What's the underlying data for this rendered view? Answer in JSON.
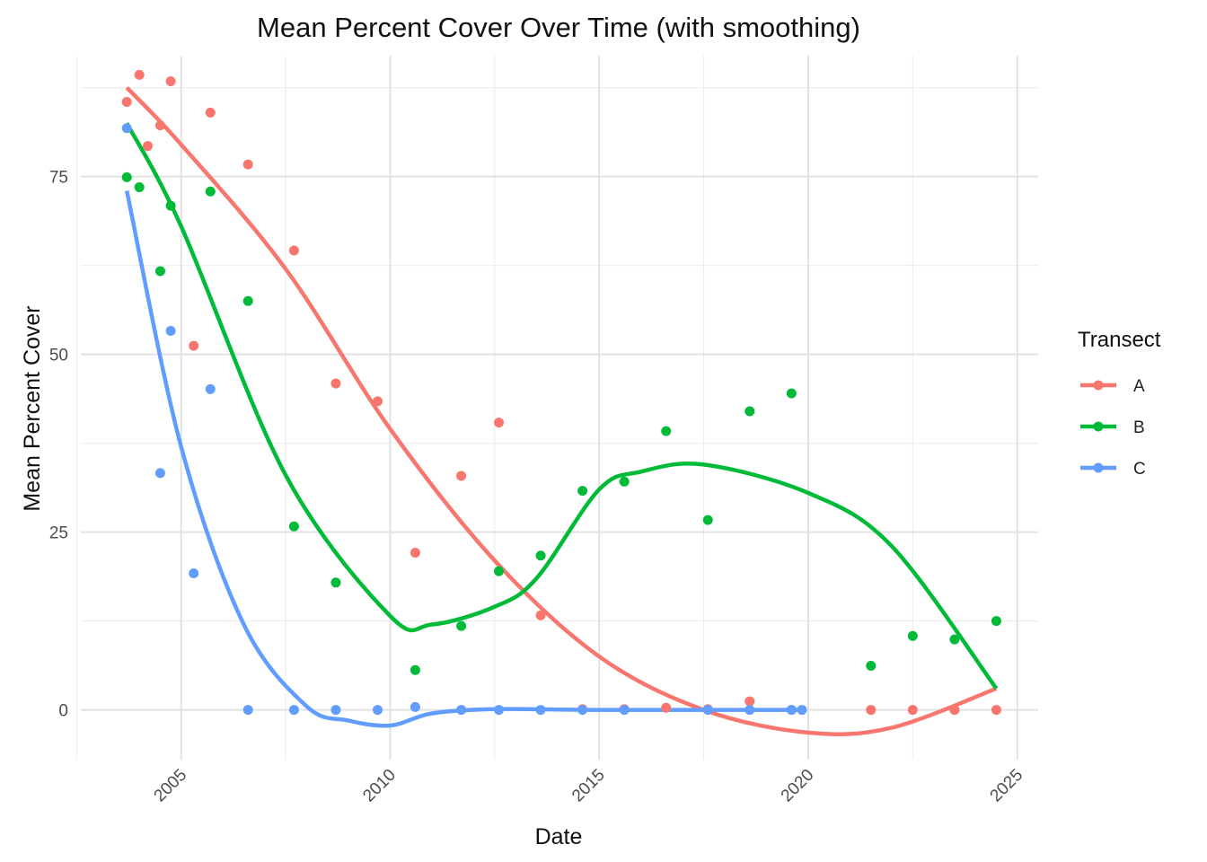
{
  "chart_data": {
    "type": "scatter",
    "title": "Mean Percent Cover Over Time (with smoothing)",
    "xlabel": "Date",
    "ylabel": "Mean Percent Cover",
    "xlim": [
      2002.6,
      2025.5
    ],
    "ylim": [
      -7,
      92
    ],
    "x_ticks": [
      2005,
      2010,
      2015,
      2020,
      2025
    ],
    "y_ticks": [
      0,
      25,
      50,
      75
    ],
    "grid": true,
    "legend": {
      "title": "Transect",
      "position": "right"
    },
    "series": [
      {
        "name": "A",
        "color": "#F8766D",
        "points": [
          [
            2003.7,
            85.5
          ],
          [
            2004.0,
            89.3
          ],
          [
            2004.2,
            79.3
          ],
          [
            2004.5,
            82.2
          ],
          [
            2004.75,
            88.4
          ],
          [
            2005.3,
            51.2
          ],
          [
            2005.7,
            84.0
          ],
          [
            2006.6,
            76.7
          ],
          [
            2007.7,
            64.6
          ],
          [
            2008.7,
            45.9
          ],
          [
            2009.7,
            43.4
          ],
          [
            2010.6,
            22.1
          ],
          [
            2011.7,
            32.9
          ],
          [
            2012.6,
            40.4
          ],
          [
            2013.6,
            13.3
          ],
          [
            2014.6,
            0.1
          ],
          [
            2015.6,
            0.1
          ],
          [
            2016.6,
            0.3
          ],
          [
            2017.6,
            0.1
          ],
          [
            2018.6,
            1.2
          ],
          [
            2019.6,
            0.0
          ],
          [
            2021.5,
            0.0
          ],
          [
            2022.5,
            0.0
          ],
          [
            2023.5,
            0.0
          ],
          [
            2024.5,
            0.0
          ]
        ],
        "smooth": [
          [
            2003.7,
            87.5
          ],
          [
            2005,
            79.5
          ],
          [
            2007.5,
            62
          ],
          [
            2010,
            39.5
          ],
          [
            2012.5,
            21
          ],
          [
            2015,
            7.5
          ],
          [
            2017.5,
            0
          ],
          [
            2020,
            -3.2
          ],
          [
            2022,
            -2.5
          ],
          [
            2024.5,
            3
          ]
        ]
      },
      {
        "name": "B",
        "color": "#00BA38",
        "points": [
          [
            2003.7,
            74.9
          ],
          [
            2004.0,
            73.5
          ],
          [
            2004.5,
            61.7
          ],
          [
            2004.75,
            70.9
          ],
          [
            2005.7,
            72.9
          ],
          [
            2006.6,
            57.5
          ],
          [
            2007.7,
            25.8
          ],
          [
            2008.7,
            17.9
          ],
          [
            2010.6,
            5.6
          ],
          [
            2011.7,
            11.8
          ],
          [
            2012.6,
            19.5
          ],
          [
            2013.6,
            21.7
          ],
          [
            2014.6,
            30.8
          ],
          [
            2015.6,
            32.1
          ],
          [
            2016.6,
            39.2
          ],
          [
            2017.6,
            26.7
          ],
          [
            2018.6,
            42.0
          ],
          [
            2019.6,
            44.5
          ],
          [
            2021.5,
            6.2
          ],
          [
            2022.5,
            10.4
          ],
          [
            2023.5,
            9.9
          ],
          [
            2024.5,
            12.5
          ]
        ],
        "smooth": [
          [
            2003.7,
            82.5
          ],
          [
            2005,
            68
          ],
          [
            2007.5,
            33
          ],
          [
            2010,
            13.2
          ],
          [
            2011,
            12
          ],
          [
            2012.5,
            14.5
          ],
          [
            2013.5,
            18.5
          ],
          [
            2015,
            31
          ],
          [
            2016,
            33.5
          ],
          [
            2017.5,
            34.5
          ],
          [
            2020,
            30.5
          ],
          [
            2022,
            23
          ],
          [
            2024.5,
            3
          ]
        ]
      },
      {
        "name": "C",
        "color": "#619CFF",
        "points": [
          [
            2003.7,
            81.8
          ],
          [
            2004.5,
            33.3
          ],
          [
            2004.75,
            53.3
          ],
          [
            2005.3,
            19.2
          ],
          [
            2005.7,
            45.1
          ],
          [
            2006.6,
            0.0
          ],
          [
            2007.7,
            0.0
          ],
          [
            2008.7,
            0.0
          ],
          [
            2009.7,
            0.0
          ],
          [
            2010.6,
            0.4
          ],
          [
            2011.7,
            0.0
          ],
          [
            2012.6,
            0.0
          ],
          [
            2013.6,
            0.0
          ],
          [
            2014.6,
            0.0
          ],
          [
            2015.6,
            0.0
          ],
          [
            2017.6,
            0.0
          ],
          [
            2018.6,
            0.0
          ],
          [
            2019.6,
            0.0
          ],
          [
            2019.85,
            0.0
          ]
        ],
        "smooth": [
          [
            2003.7,
            73
          ],
          [
            2005,
            37
          ],
          [
            2006.5,
            12
          ],
          [
            2008,
            0.5
          ],
          [
            2009,
            -1.5
          ],
          [
            2010,
            -2.2
          ],
          [
            2011,
            -0.5
          ],
          [
            2012.5,
            0.1
          ],
          [
            2015,
            0
          ],
          [
            2019.85,
            0
          ]
        ]
      }
    ]
  }
}
